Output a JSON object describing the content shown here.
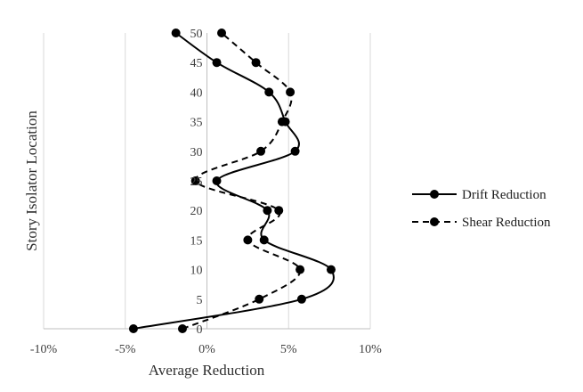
{
  "chart_data": {
    "type": "line",
    "xlabel": "Average Reduction",
    "ylabel": "Story Isolator Location",
    "xlim": [
      -0.1,
      0.1
    ],
    "ylim": [
      0,
      50
    ],
    "x_ticks": [
      -0.1,
      -0.05,
      0,
      0.05,
      0.1
    ],
    "x_tick_labels": [
      "-10%",
      "-5%",
      "0%",
      "5%",
      "10%"
    ],
    "y_ticks": [
      0,
      5,
      10,
      15,
      20,
      25,
      30,
      35,
      40,
      45,
      50
    ],
    "y_tick_labels": [
      "0",
      "5",
      "10",
      "15",
      "20",
      "25",
      "30",
      "35",
      "40",
      "45",
      "50"
    ],
    "grid": "vertical",
    "legend_position": "right",
    "series": [
      {
        "name": "Drift Reduction",
        "line_style": "solid",
        "color": "#000000",
        "points": [
          {
            "x": -0.045,
            "y": 0
          },
          {
            "x": 0.058,
            "y": 5
          },
          {
            "x": 0.076,
            "y": 10
          },
          {
            "x": 0.035,
            "y": 15
          },
          {
            "x": 0.037,
            "y": 20
          },
          {
            "x": 0.006,
            "y": 25
          },
          {
            "x": 0.054,
            "y": 30
          },
          {
            "x": 0.048,
            "y": 35
          },
          {
            "x": 0.038,
            "y": 40
          },
          {
            "x": 0.006,
            "y": 45
          },
          {
            "x": -0.019,
            "y": 50
          }
        ]
      },
      {
        "name": "Shear Reduction",
        "line_style": "dashed",
        "color": "#000000",
        "points": [
          {
            "x": -0.015,
            "y": 0
          },
          {
            "x": 0.032,
            "y": 5
          },
          {
            "x": 0.057,
            "y": 10
          },
          {
            "x": 0.025,
            "y": 15
          },
          {
            "x": 0.044,
            "y": 20
          },
          {
            "x": -0.007,
            "y": 25
          },
          {
            "x": 0.033,
            "y": 30
          },
          {
            "x": 0.046,
            "y": 35
          },
          {
            "x": 0.051,
            "y": 40
          },
          {
            "x": 0.03,
            "y": 45
          },
          {
            "x": 0.009,
            "y": 50
          }
        ]
      }
    ]
  }
}
